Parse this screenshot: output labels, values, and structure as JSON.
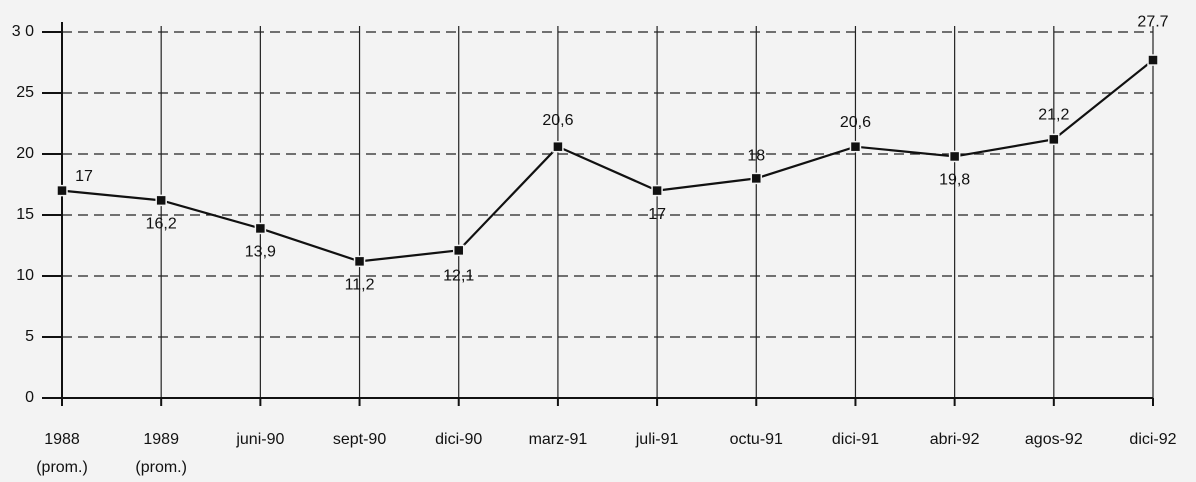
{
  "chart_data": {
    "type": "line",
    "categories": [
      "1988",
      "1989",
      "juni-90",
      "sept-90",
      "dici-90",
      "marz-91",
      "juli-91",
      "octu-91",
      "dici-91",
      "abri-92",
      "agos-92",
      "dici-92"
    ],
    "category_sublabels": [
      "(prom.)",
      "(prom.)",
      null,
      null,
      null,
      null,
      null,
      null,
      null,
      null,
      null,
      null
    ],
    "values": [
      17,
      16.2,
      13.9,
      11.2,
      12.1,
      20.6,
      17,
      18,
      20.6,
      19.8,
      21.2,
      27.7
    ],
    "value_labels": [
      "17",
      "16,2",
      "13,9",
      "11,2",
      "12,1",
      "20,6",
      "17",
      "18",
      "20,6",
      "19,8",
      "21,2",
      "27.7"
    ],
    "color": "#111111",
    "ylim": [
      0,
      30
    ],
    "yticks": [
      0,
      5,
      10,
      15,
      20,
      25,
      {
        "value": 30,
        "label": "3 0"
      }
    ],
    "grid": true
  }
}
